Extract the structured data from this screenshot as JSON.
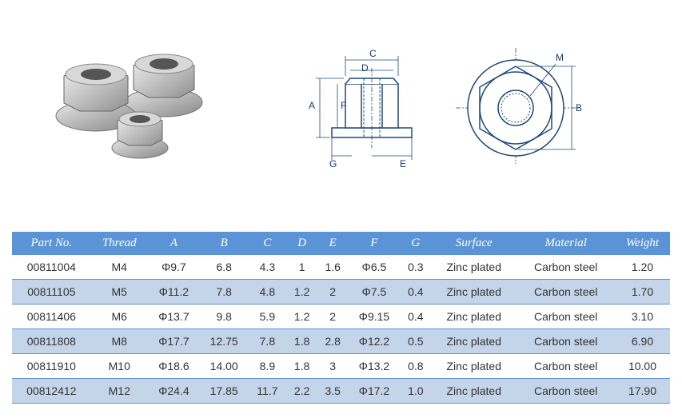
{
  "diagram": {
    "side": {
      "labels": [
        "A",
        "C",
        "D",
        "E",
        "F",
        "G"
      ]
    },
    "top": {
      "labels": [
        "B",
        "M"
      ]
    },
    "stroke": "#1e4a7a",
    "fill": "#ffffff",
    "label_fontsize": 12
  },
  "table": {
    "header_bg": "#5b94d6",
    "header_fg": "#ffffff",
    "row_odd_bg": "#ffffff",
    "row_even_bg": "#c4d5ea",
    "text_color": "#333333",
    "border_color": "#5b94d6",
    "columns": [
      "Part No.",
      "Thread",
      "A",
      "B",
      "C",
      "D",
      "E",
      "F",
      "G",
      "Surface",
      "Material",
      "Weight"
    ],
    "rows": [
      [
        "00811004",
        "M4",
        "Φ9.7",
        "6.8",
        "4.3",
        "1",
        "1.6",
        "Φ6.5",
        "0.3",
        "Zinc plated",
        "Carbon steel",
        "1.20"
      ],
      [
        "00811105",
        "M5",
        "Φ11.2",
        "7.8",
        "4.8",
        "1.2",
        "2",
        "Φ7.5",
        "0.4",
        "Zinc plated",
        "Carbon steel",
        "1.70"
      ],
      [
        "00811406",
        "M6",
        "Φ13.7",
        "9.8",
        "5.9",
        "1.2",
        "2",
        "Φ9.15",
        "0.4",
        "Zinc plated",
        "Carbon steel",
        "3.10"
      ],
      [
        "00811808",
        "M8",
        "Φ17.7",
        "12.75",
        "7.8",
        "1.8",
        "2.8",
        "Φ12.2",
        "0.5",
        "Zinc plated",
        "Carbon steel",
        "6.90"
      ],
      [
        "00811910",
        "M10",
        "Φ18.6",
        "14.00",
        "8.9",
        "1.8",
        "3",
        "Φ13.2",
        "0.8",
        "Zinc plated",
        "Carbon steel",
        "10.00"
      ],
      [
        "00812412",
        "M12",
        "Φ24.4",
        "17.85",
        "11.7",
        "2.2",
        "3.5",
        "Φ17.2",
        "1.0",
        "Zinc plated",
        "Carbon steel",
        "17.90"
      ]
    ]
  }
}
